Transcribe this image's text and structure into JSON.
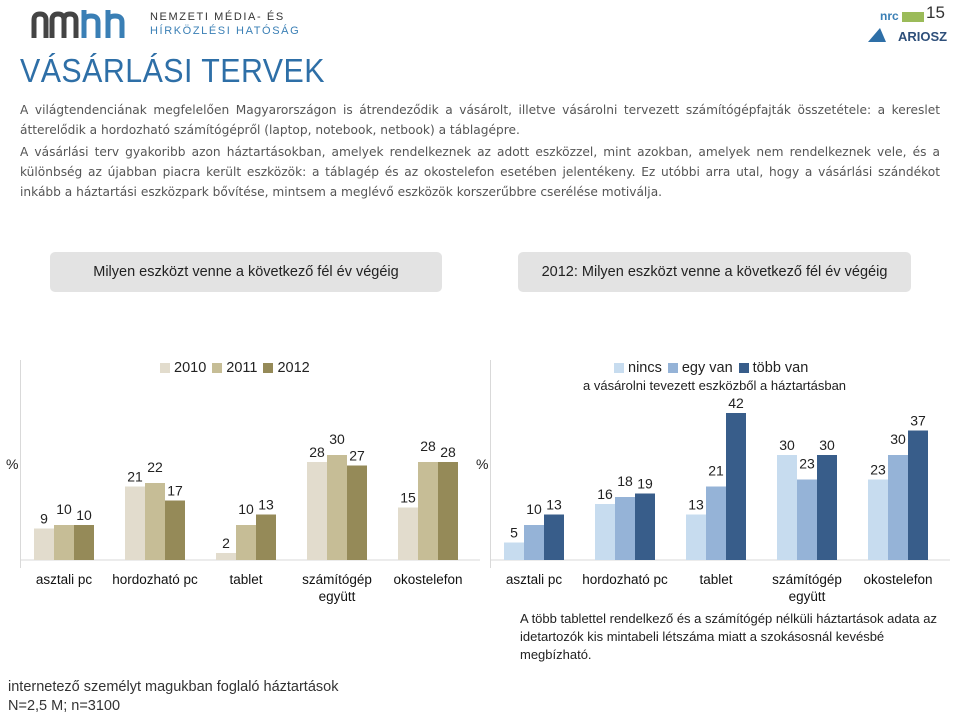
{
  "header": {
    "logo_line1": "NEMZETI MÉDIA- ÉS",
    "logo_line2": "HÍRKÖZLÉSI HATÓSÁG",
    "logo_mark": "nmhh",
    "right_logo_text": "ARIOSZ",
    "right_logo_small": "nrc",
    "page_number": "15"
  },
  "title": "VÁSÁRLÁSI TERVEK",
  "paragraphs": [
    "A világtendenciának megfelelően Magyarországon is átrendeződik a vásárolt, illetve vásárolni tervezett számítógépfajták összetétele: a kereslet átterelődik a hordozható számítógépről (laptop, notebook, netbook) a táblagépre.",
    "A vásárlási terv gyakoribb azon háztartásokban, amelyek rendelkeznek az adott eszközzel, mint azokban, amelyek nem rendelkeznek vele, és a különbség az újabban piacra került eszközök: a táblagép és az okostelefon esetében jelentékeny. Ez utóbbi arra utal, hogy a vásárlási szándékot inkább a háztartási eszközpark bővítése, mintsem a meglévő eszközök korszerűbbre cserélése motiválja."
  ],
  "question_left": "Milyen eszközt venne a következő fél év végéig",
  "question_right": "2012: Milyen eszközt venne a következő fél év végéig",
  "legend_left": [
    "2010",
    "2011",
    "2012"
  ],
  "legend_right": [
    "nincs",
    "egy van",
    "több van"
  ],
  "legend_right_sub": "a vásárolni tevezett eszközből a háztartásban",
  "y_unit": "%",
  "colors": {
    "y2010": "#e2dccd",
    "y2011": "#c6bd96",
    "y2012": "#958a58",
    "nincs": "#c7dcef",
    "egy_van": "#95b3d7",
    "tobb_van": "#385d8a",
    "title": "#2e6fa7"
  },
  "chart_data": [
    {
      "type": "bar",
      "categories": [
        "asztali pc",
        "hordozható pc",
        "tablet",
        "számítógép\negyütt",
        "okostelefon"
      ],
      "series": [
        {
          "name": "2010",
          "values": [
            9,
            21,
            2,
            28,
            15
          ]
        },
        {
          "name": "2011",
          "values": [
            10,
            22,
            10,
            30,
            28
          ]
        },
        {
          "name": "2012",
          "values": [
            10,
            17,
            13,
            27,
            28
          ]
        }
      ],
      "ylabel": "%",
      "ylim": [
        0,
        45
      ]
    },
    {
      "type": "bar",
      "categories": [
        "asztali pc",
        "hordozható pc",
        "tablet",
        "számítógép\negyütt",
        "okostelefon"
      ],
      "series": [
        {
          "name": "nincs",
          "values": [
            5,
            16,
            13,
            30,
            23
          ]
        },
        {
          "name": "egy van",
          "values": [
            10,
            18,
            21,
            23,
            30
          ]
        },
        {
          "name": "több van",
          "values": [
            13,
            19,
            42,
            30,
            37
          ]
        }
      ],
      "ylabel": "%",
      "ylim": [
        0,
        45
      ]
    }
  ],
  "note": "A több tablettel rendelkező és a számítógép nélküli háztartások adata az idetartozók kis mintabeli létszáma miatt a szokásosnál kevésbé megbízható.",
  "footer": {
    "line1": "internetező személyt magukban foglaló háztartások",
    "line2": "N=2,5 M; n=3100"
  }
}
